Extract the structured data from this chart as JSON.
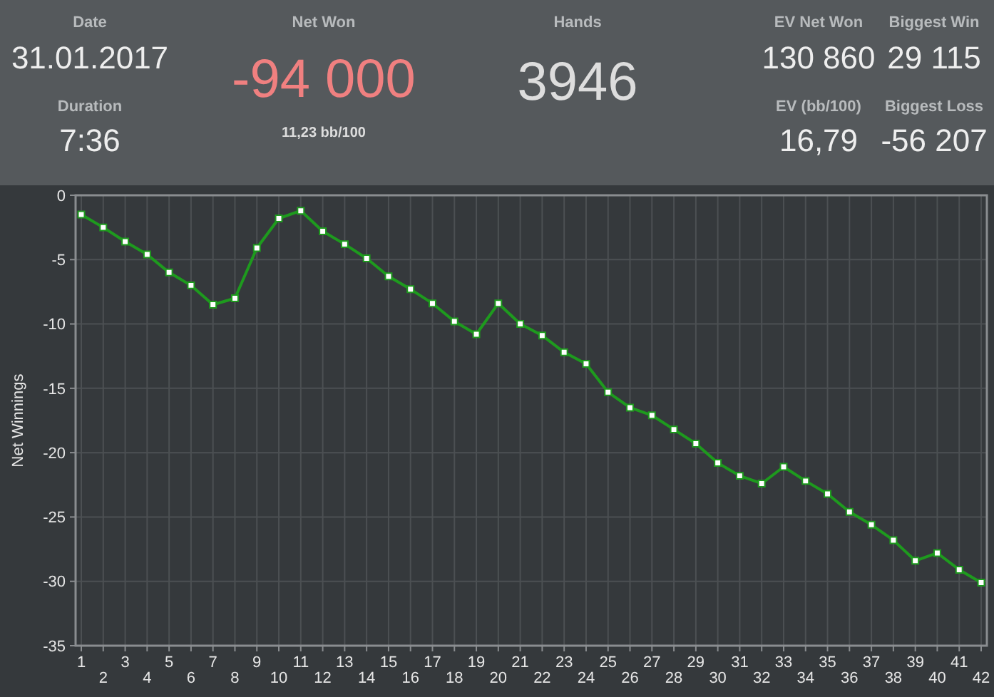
{
  "chart_data": [
    {
      "type": "other",
      "annotations": [
        "Date",
        "31.01.2017",
        "Duration",
        "7:36",
        "Net Won",
        "-94 000",
        "11,23 bb/100",
        "Hands",
        "3946",
        "EV Net Won",
        "130 860",
        "Biggest Win",
        "29 115",
        "EV (bb/100)",
        "16,79",
        "Biggest Loss",
        "-56 207"
      ]
    },
    {
      "type": "line",
      "ylabel": "Net Winnings",
      "categories": [
        "1",
        "2",
        "3",
        "4",
        "5",
        "6",
        "7",
        "8",
        "9",
        "10",
        "11",
        "12",
        "13",
        "14",
        "15",
        "16",
        "17",
        "18",
        "19",
        "20",
        "21",
        "22",
        "23",
        "24",
        "25",
        "26",
        "27",
        "28",
        "29",
        "30",
        "31",
        "32",
        "33",
        "34",
        "35",
        "36",
        "37",
        "38",
        "39",
        "40",
        "41",
        "42"
      ],
      "series": [
        {
          "color": "#1e9a1e",
          "values": [
            -1.5,
            -2.5,
            -3.6,
            -4.6,
            -6.0,
            -7.0,
            -8.5,
            -8.0,
            -4.1,
            -1.8,
            -1.2,
            -2.8,
            -3.8,
            -4.9,
            -6.3,
            -7.3,
            -8.4,
            -9.8,
            -10.8,
            -8.4,
            -10.0,
            -10.9,
            -12.2,
            -13.1,
            -15.3,
            -16.5,
            -17.1,
            -18.2,
            -19.3,
            -20.8,
            -21.8,
            -22.4,
            -21.1,
            -22.2,
            -23.2,
            -24.6,
            -25.6,
            -26.8,
            -28.4,
            -27.8,
            -29.1,
            -30.1
          ]
        }
      ],
      "ylim": [
        -35,
        0
      ],
      "yticks": [
        -35,
        -30,
        -25,
        -20,
        -15,
        -10,
        -5,
        0
      ],
      "grid": true,
      "marker": "square"
    }
  ]
}
